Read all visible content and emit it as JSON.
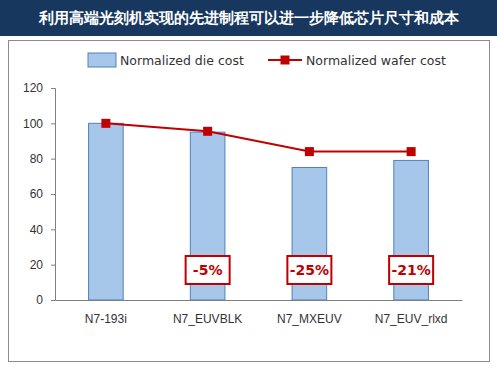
{
  "chart_data": {
    "type": "bar",
    "title": "利用高端光刻机实现的先进制程可以进一步降低芯片尺寸和成本",
    "categories": [
      "N7-193i",
      "N7_EUVBLK",
      "N7_MXEUV",
      "N7_EUV_rlxd"
    ],
    "series": [
      {
        "name": "Normalized die cost",
        "type": "bar",
        "color": "#a7c7ea",
        "values": [
          100,
          95,
          75,
          79
        ]
      },
      {
        "name": "Normalized wafer cost",
        "type": "line",
        "color": "#c00000",
        "marker": "square",
        "values": [
          100,
          95.5,
          84,
          84
        ]
      }
    ],
    "annotations": [
      null,
      "-5%",
      "-25%",
      "-21%"
    ],
    "ylim": [
      0,
      120
    ],
    "yticks": [
      0,
      20,
      40,
      60,
      80,
      100,
      120
    ],
    "grid": false,
    "legend": "top"
  }
}
